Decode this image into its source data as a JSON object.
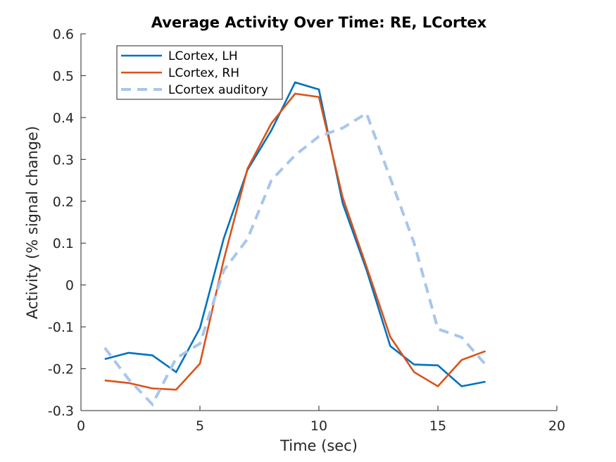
{
  "chart_data": {
    "type": "line",
    "title": "Average Activity Over Time: RE, LCortex",
    "xlabel": "Time (sec)",
    "ylabel": "Activity (% signal change)",
    "xlim": [
      0,
      20
    ],
    "ylim": [
      -0.3,
      0.6
    ],
    "x_ticks": [
      0,
      5,
      10,
      15,
      20
    ],
    "y_ticks": [
      -0.3,
      -0.2,
      -0.1,
      0,
      0.1,
      0.2,
      0.3,
      0.4,
      0.5,
      0.6
    ],
    "x_tick_labels": [
      "0",
      "5",
      "10",
      "15",
      "20"
    ],
    "y_tick_labels": [
      "-0.3",
      "-0.2",
      "-0.1",
      "0",
      "0.1",
      "0.2",
      "0.3",
      "0.4",
      "0.5",
      "0.6"
    ],
    "grid": false,
    "legend_position": "top-left",
    "x": [
      1,
      2,
      3,
      4,
      5,
      6,
      7,
      8,
      9,
      10,
      11,
      12,
      13,
      14,
      15,
      16,
      17
    ],
    "series": [
      {
        "name": "LCortex, LH",
        "color": "#0072BD",
        "style": "solid",
        "values": [
          -0.177,
          -0.162,
          -0.168,
          -0.208,
          -0.103,
          0.111,
          0.275,
          0.369,
          0.484,
          0.467,
          0.195,
          0.036,
          -0.146,
          -0.19,
          -0.192,
          -0.242,
          -0.231
        ]
      },
      {
        "name": "LCortex, RH",
        "color": "#D95319",
        "style": "solid",
        "values": [
          -0.228,
          -0.234,
          -0.247,
          -0.25,
          -0.188,
          0.06,
          0.278,
          0.386,
          0.457,
          0.449,
          0.209,
          0.044,
          -0.124,
          -0.208,
          -0.242,
          -0.179,
          -0.158
        ]
      },
      {
        "name": "LCortex auditory",
        "color": "#A8C6EC",
        "style": "dashed",
        "values": [
          -0.15,
          -0.225,
          -0.285,
          -0.175,
          -0.14,
          0.035,
          0.11,
          0.25,
          0.31,
          0.355,
          0.375,
          0.41,
          0.255,
          0.1,
          -0.105,
          -0.125,
          -0.19
        ]
      }
    ]
  }
}
